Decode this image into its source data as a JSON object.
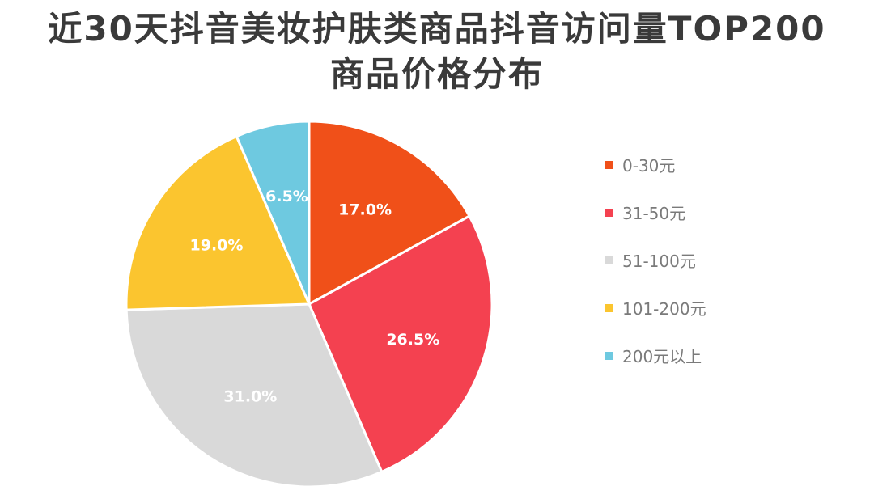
{
  "chart_data": {
    "type": "pie",
    "title": "近30天抖音美妆护肤类商品抖音访问量TOP200",
    "subtitle": "商品价格分布",
    "categories": [
      "0-30元",
      "31-50元",
      "51-100元",
      "101-200元",
      "200元以上"
    ],
    "values": [
      17.0,
      26.5,
      31.0,
      19.0,
      6.5
    ],
    "data_labels": [
      "17.0%",
      "26.5%",
      "31.0%",
      "19.0%",
      "6.5%"
    ],
    "colors": [
      "#f05019",
      "#f44150",
      "#d9d9d9",
      "#fbc52f",
      "#6ec9e0"
    ],
    "start_angle_deg": 0,
    "direction": "clockwise",
    "legend_position": "right"
  }
}
